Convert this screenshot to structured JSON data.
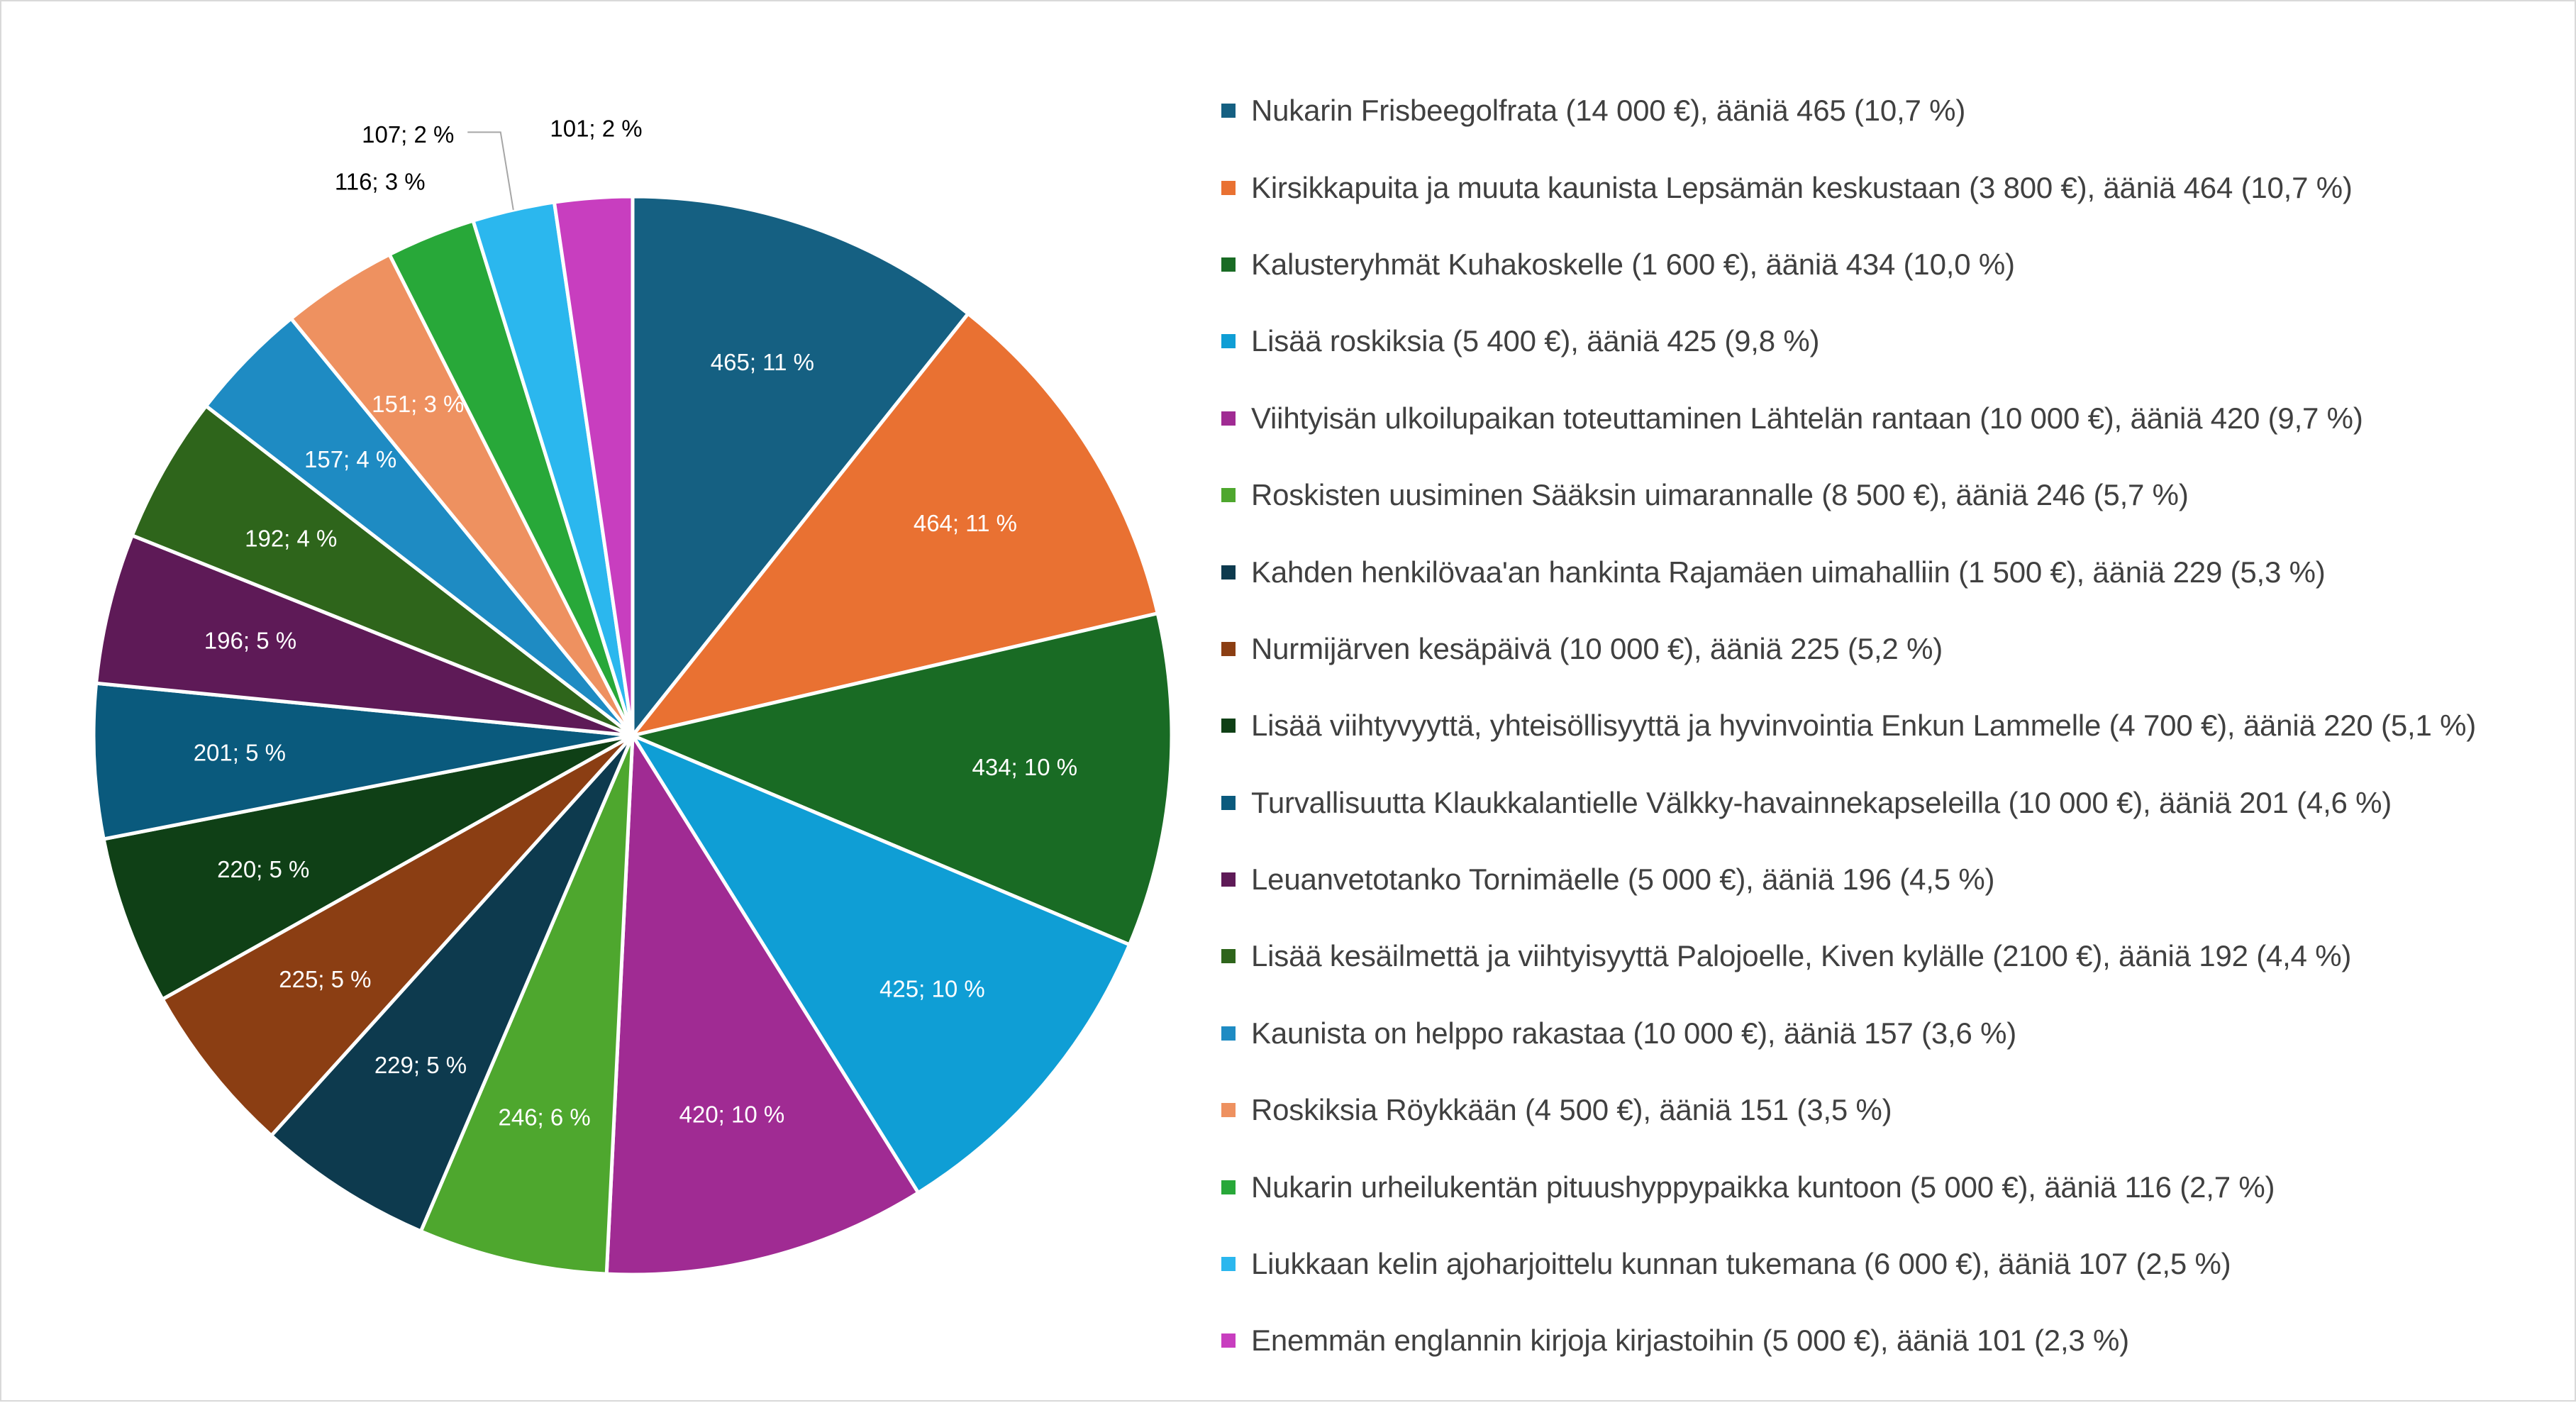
{
  "chart_data": {
    "type": "pie",
    "title": "",
    "slices": [
      {
        "value": 465,
        "label": "465; 11 %",
        "name": "Nukarin Frisbeegolfrata (14 000 €), ääniä 465 (10,7 %)",
        "color": "#156082",
        "label_color": "#ffffff"
      },
      {
        "value": 464,
        "label": "464; 11 %",
        "name": "Kirsikkapuita ja muuta kaunista Lepsämän keskustaan (3 800 €), ääniä 464 (10,7 %)",
        "color": "#E97132",
        "label_color": "#ffffff"
      },
      {
        "value": 434,
        "label": "434; 10 %",
        "name": "Kalusteryhmät Kuhakoskelle (1 600 €), ääniä 434 (10,0 %)",
        "color": "#196B24",
        "label_color": "#ffffff"
      },
      {
        "value": 425,
        "label": "425; 10 %",
        "name": "Lisää roskiksia (5 400 €), ääniä 425 (9,8 %)",
        "color": "#0F9ED5",
        "label_color": "#ffffff"
      },
      {
        "value": 420,
        "label": "420; 10 %",
        "name": "Viihtyisän ulkoilupaikan toteuttaminen Lähtelän rantaan (10 000 €), ääniä 420 (9,7 %)",
        "color": "#A02B93",
        "label_color": "#ffffff"
      },
      {
        "value": 246,
        "label": "246; 6 %",
        "name": "Roskisten uusiminen Sääksin uimarannalle (8 500 €), ääniä 246 (5,7 %)",
        "color": "#4EA72E",
        "label_color": "#ffffff"
      },
      {
        "value": 229,
        "label": "229; 5 %",
        "name": "Kahden henkilövaa'an hankinta Rajamäen uimahalliin (1 500 €), ääniä 229 (5,3 %)",
        "color": "#0D3A4E",
        "label_color": "#ffffff"
      },
      {
        "value": 225,
        "label": "225; 5 %",
        "name": "Nurmijärven kesäpäivä (10 000 €), ääniä 225 (5,2 %)",
        "color": "#8B3E13",
        "label_color": "#ffffff"
      },
      {
        "value": 220,
        "label": "220; 5 %",
        "name": "Lisää viihtyvyyttä, yhteisöllisyyttä ja hyvinvointia Enkun Lammelle (4 700 €), ääniä 220 (5,1 %)",
        "color": "#0F4016",
        "label_color": "#ffffff"
      },
      {
        "value": 201,
        "label": "201; 5 %",
        "name": "Turvallisuutta Klaukkalantielle Välkky-havainnekapseleilla (10 000 €), ääniä 201 (4,6 %)",
        "color": "#0A5A7D",
        "label_color": "#ffffff"
      },
      {
        "value": 196,
        "label": "196; 5 %",
        "name": "Leuanvetotanko Tornimäelle (5 000 €), ääniä 196 (4,5 %)",
        "color": "#5E1A57",
        "label_color": "#ffffff"
      },
      {
        "value": 192,
        "label": "192; 4 %",
        "name": "Lisää kesäilmettä ja viihtyisyyttä Palojoelle, Kiven kylälle (2100 €), ääniä 192 (4,4 %)",
        "color": "#2E651B",
        "label_color": "#ffffff"
      },
      {
        "value": 157,
        "label": "157; 4 %",
        "name": "Kaunista on helppo rakastaa (10 000 €), ääniä 157 (3,6 %)",
        "color": "#1E8BC3",
        "label_color": "#ffffff"
      },
      {
        "value": 151,
        "label": "151; 3 %",
        "name": "Roskiksia Röykkään (4 500 €), ääniä 151 (3,5 %)",
        "color": "#EE9160",
        "label_color": "#ffffff"
      },
      {
        "value": 116,
        "label": "116; 3 %",
        "name": "Nukarin urheilukentän pituushyppypaikka kuntoon (5 000 €), ääniä 116 (2,7 %)",
        "color": "#28A839",
        "label_color": "#000000"
      },
      {
        "value": 107,
        "label": "107; 2 %",
        "name": "Liukkaan kelin ajoharjoittelu kunnan tukemana (6 000 €), ääniä 107 (2,5 %)",
        "color": "#2BB7EE",
        "label_color": "#000000"
      },
      {
        "value": 101,
        "label": "101; 2 %",
        "name": "Enemmän englannin kirjoja kirjastoihin (5 000 €), ääniä 101 (2,3 %)",
        "color": "#C83EBF",
        "label_color": "#000000"
      }
    ],
    "legend_position": "right"
  }
}
